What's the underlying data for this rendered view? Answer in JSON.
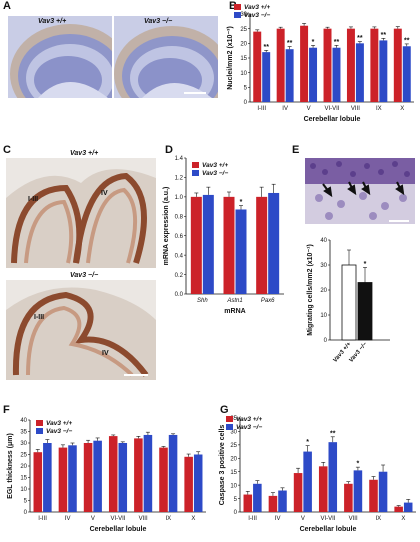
{
  "colors": {
    "red": "#cc2229",
    "blue": "#2d4ac7",
    "black": "#111111"
  },
  "panels": {
    "A": {
      "letter": "A",
      "label_wt": "Vav3 +/+",
      "label_ko": "Vav3 −/−"
    },
    "C": {
      "letter": "C",
      "label_wt": "Vav3 +/+",
      "label_ko": "Vav3 −/−",
      "lobule_wt_1": "I-III",
      "lobule_wt_2": "IV",
      "lobule_ko_1": "I-III",
      "lobule_ko_2": "IV"
    },
    "E": {
      "letter": "E"
    }
  },
  "legend": {
    "wt": "Vav3 +/+",
    "ko": "Vav3 −/−"
  },
  "chart_data": [
    {
      "id": "B",
      "type": "bar",
      "xlabel": "Cerebellar lobule",
      "ylabel": "Nuclei/mm2 (x10⁻³)",
      "ylim": [
        0,
        30
      ],
      "yticks": [
        0,
        5,
        10,
        15,
        20,
        25,
        30
      ],
      "categories": [
        "I-III",
        "IV",
        "V",
        "VI-VII",
        "VIII",
        "IX",
        "X"
      ],
      "series": [
        {
          "name": "Vav3 +/+",
          "values": [
            24,
            25,
            26,
            25,
            25,
            25,
            25
          ],
          "errors": [
            0.6,
            0.5,
            0.8,
            0.5,
            0.6,
            0.6,
            0.7
          ]
        },
        {
          "name": "Vav3 −/−",
          "values": [
            17,
            18,
            18.5,
            18.5,
            20,
            21,
            19
          ],
          "errors": [
            0.6,
            0.9,
            0.8,
            0.8,
            0.6,
            0.7,
            0.8
          ]
        }
      ],
      "annotations": [
        "**",
        "**",
        "*",
        "**",
        "**",
        "**",
        "**"
      ]
    },
    {
      "id": "D",
      "type": "bar",
      "xlabel": "mRNA",
      "ylabel": "mRNA expression (a.u.)",
      "ylim": [
        0,
        1.4
      ],
      "yticks": [
        0,
        0.2,
        0.4,
        0.6,
        0.8,
        1.0,
        1.2,
        1.4
      ],
      "categories": [
        "Shh",
        "Astn1",
        "Pax6"
      ],
      "series": [
        {
          "name": "Vav3 +/+",
          "values": [
            1.0,
            1.0,
            1.0
          ],
          "errors": [
            0.04,
            0.05,
            0.1
          ]
        },
        {
          "name": "Vav3 −/−",
          "values": [
            1.02,
            0.87,
            1.04
          ],
          "errors": [
            0.08,
            0.04,
            0.09
          ]
        }
      ],
      "annotations": [
        "",
        "*",
        ""
      ]
    },
    {
      "id": "E",
      "type": "bar",
      "ylabel": "Migrating cells/mm2 (x10⁻¹)",
      "ylim": [
        0,
        40
      ],
      "yticks": [
        0,
        10,
        20,
        30,
        40
      ],
      "categories": [
        "Vav3 +/+",
        "Vav3 −/−"
      ],
      "values": [
        30,
        23
      ],
      "errors": [
        6,
        6
      ],
      "annotations": [
        "",
        "*"
      ]
    },
    {
      "id": "F",
      "type": "bar",
      "xlabel": "Cerebellar lobule",
      "ylabel": "EGL thickness (μm)",
      "ylim": [
        0,
        40
      ],
      "yticks": [
        0,
        5,
        10,
        15,
        20,
        25,
        30,
        35,
        40
      ],
      "categories": [
        "I-III",
        "IV",
        "V",
        "VI-VII",
        "VIII",
        "IX",
        "X"
      ],
      "series": [
        {
          "name": "Vav3 +/+",
          "values": [
            26,
            28,
            30,
            33,
            32,
            28,
            24
          ],
          "errors": [
            1.2,
            1.2,
            1.2,
            0.5,
            0.9,
            0.5,
            1.2
          ]
        },
        {
          "name": "Vav3 −/−",
          "values": [
            30,
            29,
            31,
            30,
            33.5,
            33.5,
            25
          ],
          "errors": [
            1.5,
            1.0,
            1.2,
            0.5,
            1.2,
            0.5,
            1.2
          ]
        }
      ],
      "annotations": []
    },
    {
      "id": "G",
      "type": "bar",
      "xlabel": "Cerebellar lobule",
      "ylabel": "Caspase 3 positive cells",
      "ylim": [
        0,
        35
      ],
      "yticks": [
        0,
        5,
        10,
        15,
        20,
        25,
        30,
        35
      ],
      "categories": [
        "I-III",
        "IV",
        "V",
        "VI-VII",
        "VIII",
        "IX",
        "X"
      ],
      "series": [
        {
          "name": "Vav3 +/+",
          "values": [
            6.5,
            6,
            14.5,
            17,
            10.5,
            12,
            2
          ],
          "errors": [
            1.2,
            1.2,
            1.8,
            1.5,
            0.8,
            1.2,
            0.4
          ]
        },
        {
          "name": "Vav3 −/−",
          "values": [
            10.5,
            8,
            22.5,
            26,
            15.5,
            15,
            3.5
          ],
          "errors": [
            1.2,
            1.0,
            2.2,
            2.0,
            1.2,
            2.5,
            1.2
          ]
        }
      ],
      "annotations": [
        "",
        "",
        "*",
        "**",
        "*",
        "",
        ""
      ]
    }
  ]
}
